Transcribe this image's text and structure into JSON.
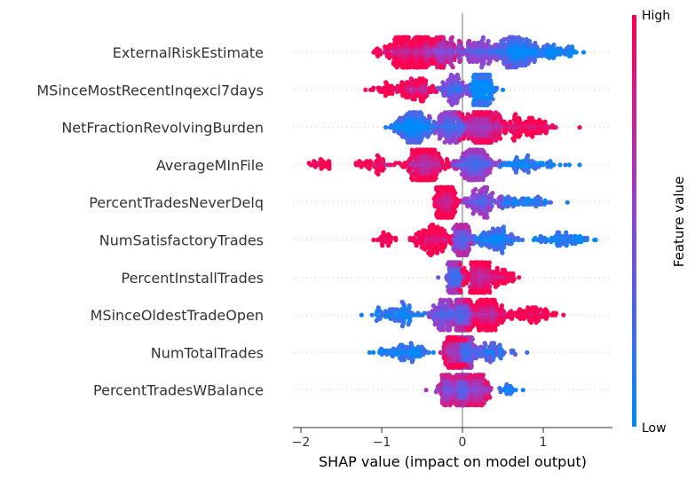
{
  "chart_data": {
    "type": "scatter",
    "subtype": "shap-beeswarm",
    "xlabel": "SHAP value (impact on model output)",
    "xlim": [
      -2.1,
      1.85
    ],
    "x_ticks": [
      -2,
      -1,
      0,
      1
    ],
    "zero_line": true,
    "grid": "horizontal dotted row guides",
    "colorbar": {
      "title": "Feature value",
      "high_label": "High",
      "low_label": "Low",
      "high_color": "#ff0051",
      "mid_color": "#8a48d8",
      "low_color": "#008bfb"
    },
    "features": [
      {
        "name": "ExternalRiskEstimate",
        "min": -1.1,
        "max": 1.5,
        "clusters": [
          {
            "center": -0.65,
            "spread": 0.35,
            "weight": 1.0,
            "high": 0.9
          },
          {
            "center": -0.25,
            "spread": 0.25,
            "weight": 0.6,
            "high": 0.6
          },
          {
            "center": 0.2,
            "spread": 0.3,
            "weight": 0.5,
            "high": 0.35
          },
          {
            "center": 0.7,
            "spread": 0.3,
            "weight": 0.8,
            "high": 0.1
          },
          {
            "center": 1.2,
            "spread": 0.2,
            "weight": 0.2,
            "high": 0.0
          }
        ]
      },
      {
        "name": "MSinceMostRecentInqexcl7days",
        "min": -1.2,
        "max": 0.5,
        "clusters": [
          {
            "center": -0.9,
            "spread": 0.2,
            "weight": 0.15,
            "high": 0.95
          },
          {
            "center": -0.55,
            "spread": 0.25,
            "weight": 0.4,
            "high": 0.85
          },
          {
            "center": -0.1,
            "spread": 0.2,
            "weight": 0.4,
            "high": 0.3
          },
          {
            "center": 0.25,
            "spread": 0.12,
            "weight": 1.0,
            "high": 0.0
          }
        ]
      },
      {
        "name": "NetFractionRevolvingBurden",
        "min": -0.95,
        "max": 1.45,
        "clusters": [
          {
            "center": -0.6,
            "spread": 0.25,
            "weight": 0.7,
            "high": 0.1
          },
          {
            "center": -0.15,
            "spread": 0.2,
            "weight": 0.6,
            "high": 0.35
          },
          {
            "center": 0.25,
            "spread": 0.25,
            "weight": 1.0,
            "high": 0.75
          },
          {
            "center": 0.8,
            "spread": 0.35,
            "weight": 0.5,
            "high": 0.95
          }
        ]
      },
      {
        "name": "AverageMInFile",
        "min": -1.9,
        "max": 1.45,
        "clusters": [
          {
            "center": -1.75,
            "spread": 0.12,
            "weight": 0.1,
            "high": 1.0
          },
          {
            "center": -1.1,
            "spread": 0.25,
            "weight": 0.2,
            "high": 0.95
          },
          {
            "center": -0.45,
            "spread": 0.25,
            "weight": 1.0,
            "high": 0.85
          },
          {
            "center": 0.15,
            "spread": 0.25,
            "weight": 0.8,
            "high": 0.4
          },
          {
            "center": 0.8,
            "spread": 0.35,
            "weight": 0.3,
            "high": 0.05
          }
        ]
      },
      {
        "name": "PercentTradesNeverDelq",
        "min": -0.35,
        "max": 1.3,
        "clusters": [
          {
            "center": -0.2,
            "spread": 0.12,
            "weight": 1.0,
            "high": 0.95
          },
          {
            "center": 0.25,
            "spread": 0.25,
            "weight": 0.45,
            "high": 0.4
          },
          {
            "center": 0.75,
            "spread": 0.35,
            "weight": 0.25,
            "high": 0.05
          }
        ]
      },
      {
        "name": "NumSatisfactoryTrades",
        "min": -1.1,
        "max": 1.65,
        "clusters": [
          {
            "center": -0.95,
            "spread": 0.12,
            "weight": 0.1,
            "high": 1.0
          },
          {
            "center": -0.35,
            "spread": 0.25,
            "weight": 0.55,
            "high": 0.95
          },
          {
            "center": 0.0,
            "spread": 0.1,
            "weight": 0.7,
            "high": 0.5
          },
          {
            "center": 0.4,
            "spread": 0.3,
            "weight": 0.45,
            "high": 0.1
          },
          {
            "center": 1.2,
            "spread": 0.35,
            "weight": 0.3,
            "high": 0.0
          }
        ]
      },
      {
        "name": "PercentInstallTrades",
        "min": -0.3,
        "max": 0.7,
        "clusters": [
          {
            "center": -0.1,
            "spread": 0.08,
            "weight": 1.0,
            "high": 0.4
          },
          {
            "center": 0.2,
            "spread": 0.2,
            "weight": 0.7,
            "high": 0.85
          },
          {
            "center": 0.5,
            "spread": 0.15,
            "weight": 0.2,
            "high": 0.95
          }
        ]
      },
      {
        "name": "MSinceOldestTradeOpen",
        "min": -1.25,
        "max": 1.25,
        "clusters": [
          {
            "center": -0.8,
            "spread": 0.3,
            "weight": 0.35,
            "high": 0.05
          },
          {
            "center": -0.2,
            "spread": 0.2,
            "weight": 0.5,
            "high": 0.4
          },
          {
            "center": 0.0,
            "spread": 0.1,
            "weight": 0.9,
            "high": 0.5
          },
          {
            "center": 0.3,
            "spread": 0.25,
            "weight": 0.8,
            "high": 0.85
          },
          {
            "center": 0.9,
            "spread": 0.25,
            "weight": 0.3,
            "high": 0.95
          }
        ]
      },
      {
        "name": "NumTotalTrades",
        "min": -1.15,
        "max": 0.8,
        "clusters": [
          {
            "center": -0.7,
            "spread": 0.3,
            "weight": 0.35,
            "high": 0.05
          },
          {
            "center": -0.1,
            "spread": 0.15,
            "weight": 0.7,
            "high": 0.8
          },
          {
            "center": 0.05,
            "spread": 0.1,
            "weight": 0.8,
            "high": 0.4
          },
          {
            "center": 0.35,
            "spread": 0.25,
            "weight": 0.3,
            "high": 0.2
          }
        ]
      },
      {
        "name": "PercentTradesWBalance",
        "min": -0.45,
        "max": 0.75,
        "clusters": [
          {
            "center": -0.15,
            "spread": 0.15,
            "weight": 0.5,
            "high": 0.6
          },
          {
            "center": 0.0,
            "spread": 0.07,
            "weight": 1.0,
            "high": 0.5
          },
          {
            "center": 0.2,
            "spread": 0.15,
            "weight": 0.5,
            "high": 0.7
          },
          {
            "center": 0.55,
            "spread": 0.12,
            "weight": 0.08,
            "high": 0.05
          }
        ]
      }
    ]
  }
}
